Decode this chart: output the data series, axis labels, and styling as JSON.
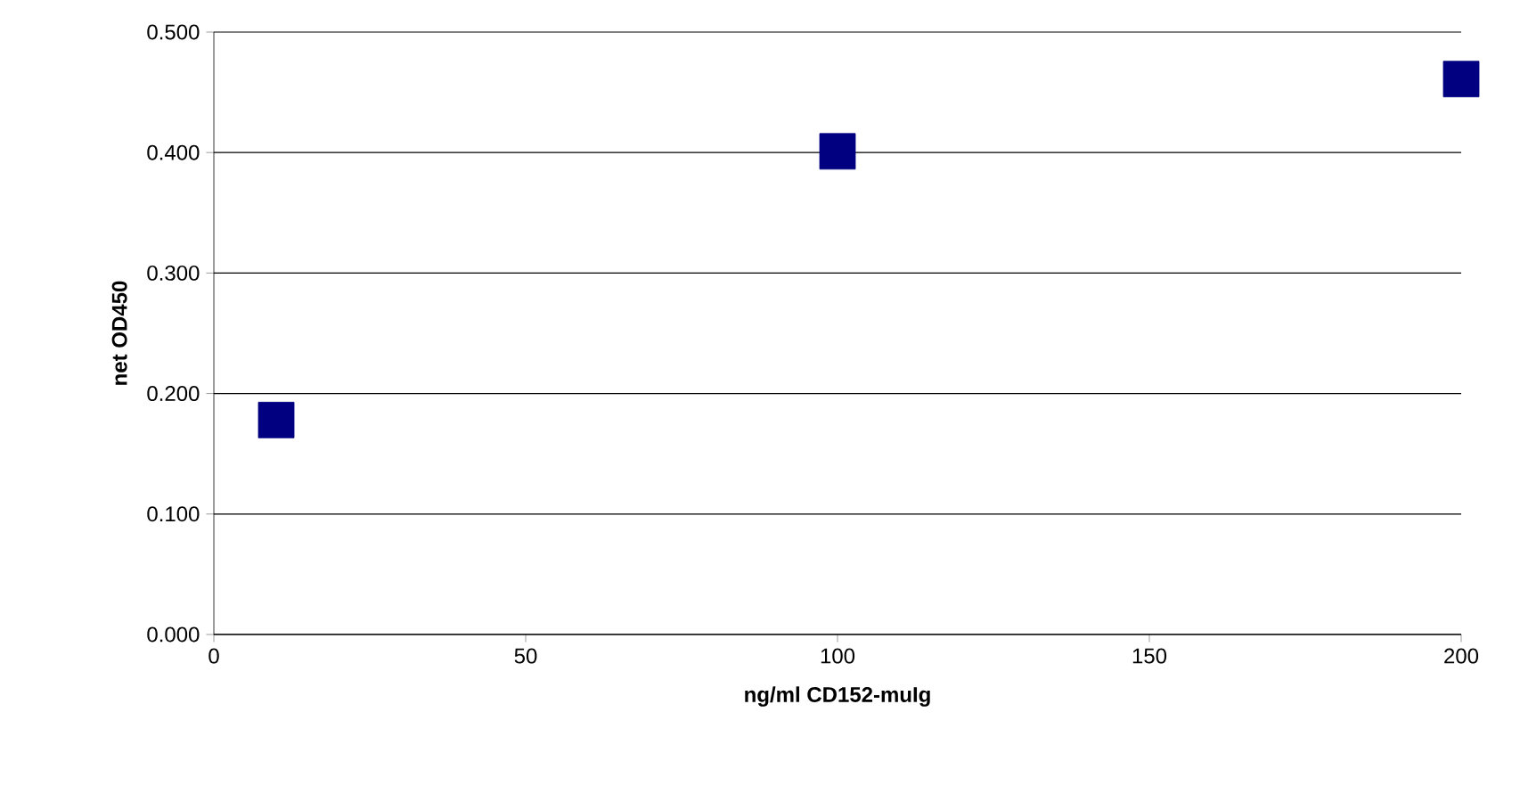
{
  "chart_data": {
    "type": "scatter",
    "xlabel": "ng/ml CD152-muIg",
    "ylabel": "net OD450",
    "x": [
      10,
      100,
      200
    ],
    "values": [
      0.178,
      0.401,
      0.461
    ],
    "color": "#000080",
    "marker": "square",
    "xlim": [
      0,
      200
    ],
    "xticks": [
      0,
      50,
      100,
      150,
      200
    ],
    "ylim": [
      0,
      0.5
    ],
    "yticks": [
      {
        "value": 0,
        "label": "0.000"
      },
      {
        "value": 0.1,
        "label": "0.100"
      },
      {
        "value": 0.2,
        "label": "0.200"
      },
      {
        "value": 0.3,
        "label": "0.300"
      },
      {
        "value": 0.4,
        "label": "0.400"
      },
      {
        "value": 0.5,
        "label": "0.500"
      }
    ],
    "grid": "y"
  }
}
